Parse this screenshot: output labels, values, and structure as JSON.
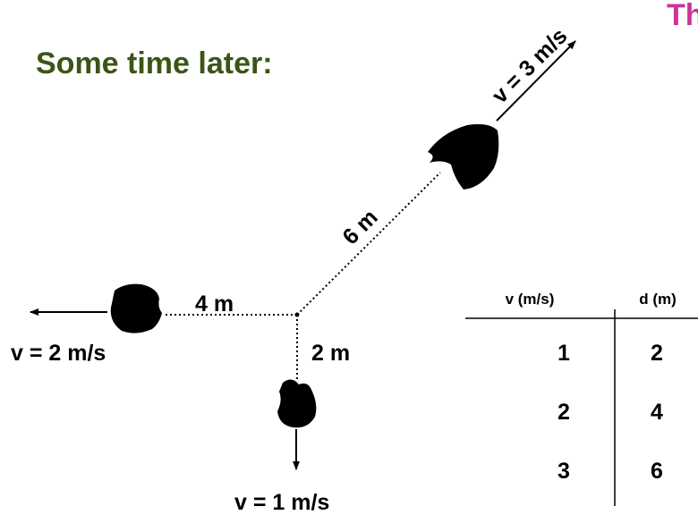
{
  "heading": "Some time later:",
  "corner_title": "Th",
  "labels": {
    "v_up": "v = 3 m/s",
    "d_up": "6 m",
    "d_left": "4 m",
    "v_left": "v = 2 m/s",
    "d_down": "2 m",
    "v_down": "v = 1 m/s"
  },
  "table": {
    "headers": [
      "v (m/s)",
      "d (m)"
    ],
    "rows": [
      [
        1,
        2
      ],
      [
        2,
        4
      ],
      [
        3,
        6
      ]
    ]
  }
}
